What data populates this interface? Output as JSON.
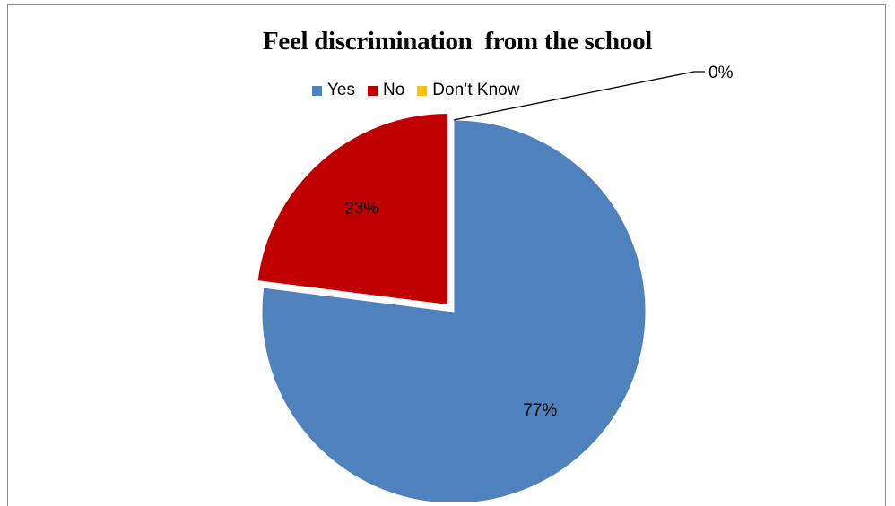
{
  "chart_data": {
    "type": "pie",
    "title": "Feel discrimination  from the school",
    "legend_position": "top",
    "categories": [
      "Yes",
      "No",
      "Don’t Know"
    ],
    "values": [
      77,
      23,
      0
    ],
    "labels": [
      "77%",
      "23%",
      "0%"
    ],
    "colors": [
      "#4f81bd",
      "#c00000",
      "#ffc000"
    ],
    "exploded": [
      false,
      true,
      false
    ]
  }
}
